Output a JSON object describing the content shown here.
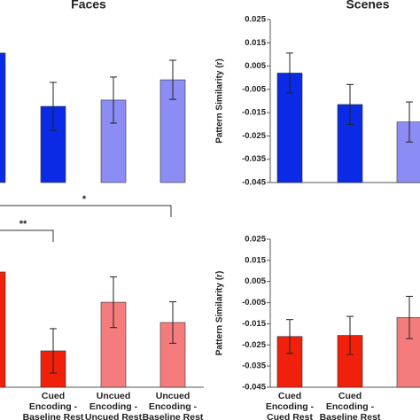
{
  "chart_data": [
    {
      "type": "bar",
      "title": "Faces",
      "categories": [
        null,
        null,
        null,
        null
      ],
      "values": [
        0.0106,
        -0.0123,
        -0.0096,
        -0.0009
      ],
      "errors": [
        null,
        0.0103,
        0.0099,
        0.0084
      ],
      "colors": [
        "#0a2ae6",
        "#0a2ae6",
        "#8c8cf5",
        "#8c8cf5"
      ],
      "ylim": [
        -0.045,
        0.025
      ]
    },
    {
      "type": "bar",
      "title": "Scenes",
      "y_label": "Pattern Similarity (r)",
      "categories": [
        null,
        null,
        null
      ],
      "values": [
        0.002,
        -0.0115,
        -0.019
      ],
      "errors": [
        0.0086,
        0.0086,
        0.0086
      ],
      "colors": [
        "#0a2ae6",
        "#0a2ae6",
        "#8c8cf5"
      ],
      "ylim": [
        -0.045,
        0.025
      ],
      "yticks": [
        0.025,
        0.015,
        0.005,
        -0.005,
        -0.015,
        -0.025,
        -0.035,
        -0.045
      ]
    },
    {
      "type": "bar",
      "categories": [
        null,
        "Cued\nEncoding -\nBaseline Rest",
        "Uncued\nEncoding -\nUncued Rest",
        "Uncued\nEncoding -\nBaseline Rest"
      ],
      "values": [
        0.0095,
        -0.0278,
        -0.0048,
        -0.0144
      ],
      "errors": [
        null,
        0.0105,
        0.012,
        0.0098
      ],
      "colors": [
        "#f0200a",
        "#f0200a",
        "#f47c7c",
        "#f47c7c"
      ],
      "ylim": [
        -0.045,
        0.025
      ],
      "annotations": [
        {
          "text": "*"
        },
        {
          "text": "**"
        }
      ]
    },
    {
      "type": "bar",
      "y_label": "Pattern Similarity (r)",
      "categories": [
        "Cued\nEncoding -\nCued Rest",
        "Cued\nEncoding -\nBaseline Rest",
        null
      ],
      "values": [
        -0.021,
        -0.0205,
        -0.012
      ],
      "errors": [
        0.008,
        0.009,
        0.01
      ],
      "colors": [
        "#f0200a",
        "#f0200a",
        "#f47c7c"
      ],
      "ylim": [
        -0.045,
        0.025
      ],
      "yticks": [
        0.025,
        0.015,
        0.005,
        -0.005,
        -0.015,
        -0.025,
        -0.035,
        -0.045
      ]
    }
  ]
}
